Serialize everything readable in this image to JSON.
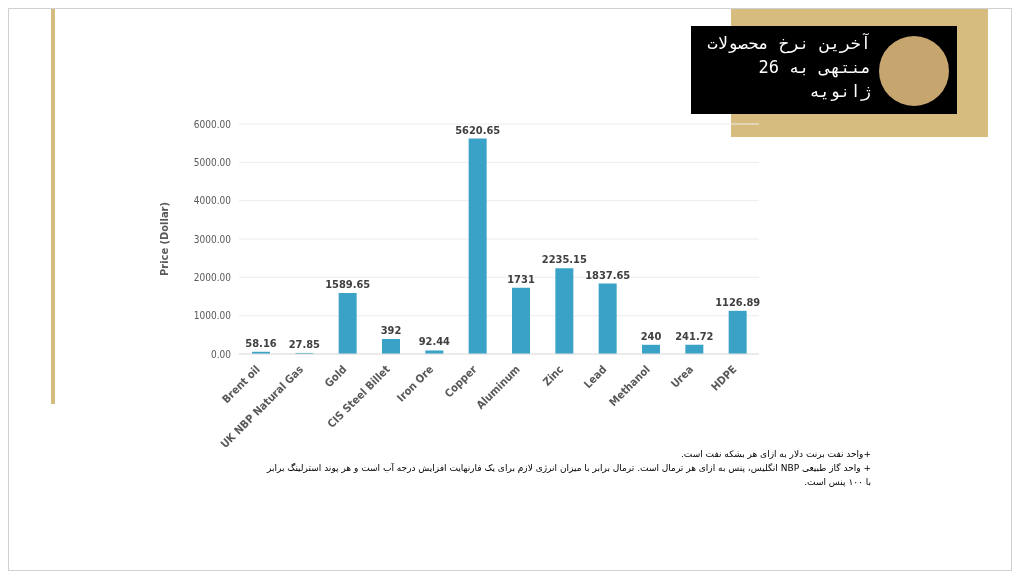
{
  "chart_data": {
    "type": "bar",
    "title": "آخرین نرخ محصولات منتهی به 26 ژانویه",
    "ylabel": "Price (Dollar)",
    "categories": [
      "Brent oil",
      "UK NBP Natural Gas",
      "Gold",
      "CIS Steel Billet",
      "Iron Ore",
      "Copper",
      "Aluminum",
      "Zinc",
      "Lead",
      "Methanol",
      "Urea",
      "HDPE"
    ],
    "values": [
      58.16,
      27.85,
      1589.65,
      392,
      92.44,
      5620.65,
      1731,
      2235.15,
      1837.65,
      240,
      241.72,
      1126.89
    ],
    "color": "#3aa2c6",
    "ylim": [
      0,
      6000
    ],
    "yticks": [
      {
        "value": 0,
        "label": "0.00"
      },
      {
        "value": 1000,
        "label": "1000.00"
      },
      {
        "value": 2000,
        "label": "2000.00"
      },
      {
        "value": 3000,
        "label": "3000.00"
      },
      {
        "value": 4000,
        "label": "4000.00"
      },
      {
        "value": 5000,
        "label": "5000.00"
      },
      {
        "value": 6000,
        "label": "6000.00"
      }
    ],
    "grid": "y",
    "data_labels": true,
    "annotations": [
      "+واحد نفت برنت دلار به ازای هر بشکه نفت است.",
      "+ واحد گاز طبیعی NBP انگلیس، پنس به ازای هر ترمال است. ترمال برابر با میزان انرژی لازم برای یک فارنهایت افزایش درجه آب است و هر پوند استرلینگ برابر با ۱۰۰ پنس است."
    ]
  }
}
